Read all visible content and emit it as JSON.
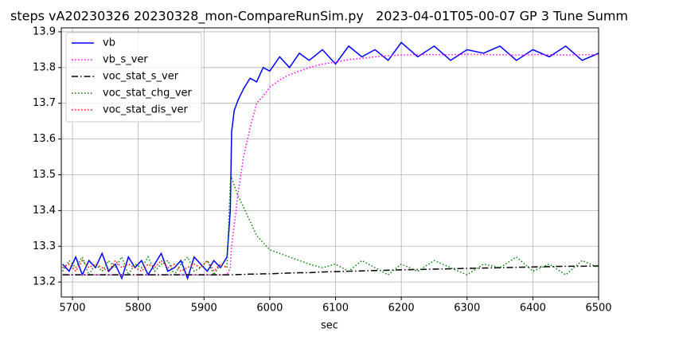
{
  "chart_data": {
    "type": "line",
    "title": "steps vA20230326 20230328_mon-CompareRunSim.py   2023-04-01T05-00-07 GP 3 Tune Summ",
    "x_label": "sec",
    "x": [
      5685,
      5695,
      5705,
      5715,
      5725,
      5735,
      5745,
      5755,
      5765,
      5775,
      5785,
      5795,
      5805,
      5815,
      5825,
      5835,
      5845,
      5855,
      5865,
      5875,
      5885,
      5895,
      5905,
      5915,
      5925,
      5935,
      5940,
      5942,
      5946,
      5952,
      5960,
      5970,
      5980,
      5990,
      6000,
      6015,
      6030,
      6045,
      6060,
      6080,
      6100,
      6120,
      6140,
      6160,
      6180,
      6200,
      6225,
      6250,
      6275,
      6300,
      6325,
      6350,
      6375,
      6400,
      6425,
      6450,
      6475,
      6500
    ],
    "series": [
      {
        "name": "vb",
        "color": "#0000ff",
        "linestyle": "solid",
        "values": [
          13.25,
          13.23,
          13.27,
          13.22,
          13.26,
          13.24,
          13.28,
          13.23,
          13.25,
          13.21,
          13.27,
          13.24,
          13.26,
          13.22,
          13.25,
          13.28,
          13.23,
          13.24,
          13.26,
          13.21,
          13.27,
          13.25,
          13.23,
          13.26,
          13.24,
          13.27,
          13.4,
          13.62,
          13.68,
          13.71,
          13.74,
          13.77,
          13.76,
          13.8,
          13.79,
          13.83,
          13.8,
          13.84,
          13.82,
          13.85,
          13.81,
          13.86,
          13.83,
          13.85,
          13.82,
          13.87,
          13.83,
          13.86,
          13.82,
          13.85,
          13.84,
          13.86,
          13.82,
          13.85,
          13.83,
          13.86,
          13.82,
          13.84
        ]
      },
      {
        "name": "vb_s_ver",
        "color": "#ff00ff",
        "linestyle": "dotted",
        "values": [
          13.22,
          13.22,
          13.22,
          13.22,
          13.22,
          13.22,
          13.22,
          13.22,
          13.22,
          13.22,
          13.22,
          13.22,
          13.22,
          13.22,
          13.22,
          13.22,
          13.22,
          13.22,
          13.22,
          13.22,
          13.22,
          13.22,
          13.22,
          13.22,
          13.22,
          13.22,
          13.24,
          13.3,
          13.36,
          13.45,
          13.55,
          13.63,
          13.7,
          13.72,
          13.745,
          13.765,
          13.78,
          13.79,
          13.8,
          13.81,
          13.815,
          13.822,
          13.826,
          13.83,
          13.833,
          13.835,
          13.836,
          13.836,
          13.836,
          13.837,
          13.836,
          13.836,
          13.835,
          13.836,
          13.836,
          13.835,
          13.836,
          13.836
        ]
      },
      {
        "name": "voc_stat_s_ver",
        "color": "#000000",
        "linestyle": "dashdot",
        "values": [
          13.22,
          13.22,
          13.22,
          13.22,
          13.22,
          13.22,
          13.22,
          13.22,
          13.22,
          13.22,
          13.22,
          13.22,
          13.22,
          13.22,
          13.22,
          13.22,
          13.22,
          13.22,
          13.22,
          13.22,
          13.22,
          13.22,
          13.22,
          13.22,
          13.22,
          13.22,
          13.22,
          13.22,
          13.22,
          13.221,
          13.221,
          13.222,
          13.222,
          13.223,
          13.223,
          13.224,
          13.225,
          13.226,
          13.226,
          13.228,
          13.229,
          13.23,
          13.231,
          13.232,
          13.233,
          13.234,
          13.235,
          13.236,
          13.237,
          13.238,
          13.239,
          13.24,
          13.241,
          13.242,
          13.243,
          13.244,
          13.244,
          13.245
        ]
      },
      {
        "name": "voc_stat_chg_ver",
        "color": "#008000",
        "linestyle": "dotted",
        "values": [
          13.23,
          13.26,
          13.24,
          13.27,
          13.22,
          13.25,
          13.23,
          13.26,
          13.24,
          13.27,
          13.22,
          13.25,
          13.24,
          13.27,
          13.23,
          13.25,
          13.26,
          13.22,
          13.25,
          13.27,
          13.23,
          13.24,
          13.26,
          13.22,
          13.25,
          13.24,
          13.48,
          13.49,
          13.47,
          13.44,
          13.41,
          13.37,
          13.33,
          13.31,
          13.29,
          13.28,
          13.27,
          13.26,
          13.25,
          13.24,
          13.25,
          13.23,
          13.26,
          13.24,
          13.22,
          13.25,
          13.23,
          13.26,
          13.24,
          13.22,
          13.25,
          13.24,
          13.27,
          13.23,
          13.25,
          13.22,
          13.26,
          13.24
        ]
      },
      {
        "name": "voc_stat_dis_ver",
        "color": "#ff0000",
        "linestyle": "dotted",
        "values": [
          13.24,
          13.25,
          13.23,
          13.26,
          13.24,
          13.25,
          13.24,
          13.23,
          13.26,
          13.24,
          13.25,
          13.24,
          13.23,
          13.25,
          13.24,
          13.26,
          13.24,
          13.25,
          13.23,
          13.24,
          13.25,
          13.24,
          13.26,
          13.23,
          13.25,
          13.24,
          null,
          null,
          null,
          null,
          null,
          null,
          null,
          null,
          null,
          null,
          null,
          null,
          null,
          null,
          null,
          null,
          null,
          null,
          null,
          null,
          null,
          null,
          null,
          null,
          null,
          null,
          null,
          null,
          null,
          null,
          null,
          null
        ]
      }
    ],
    "xlim": [
      5683,
      6500
    ],
    "xticks": [
      5700,
      5800,
      5900,
      6000,
      6100,
      6200,
      6300,
      6400,
      6500
    ],
    "ylim": [
      13.158,
      13.911
    ],
    "yticks": [
      13.2,
      13.3,
      13.4,
      13.5,
      13.6,
      13.7,
      13.8,
      13.9
    ],
    "grid": true,
    "legend": "upper left"
  }
}
